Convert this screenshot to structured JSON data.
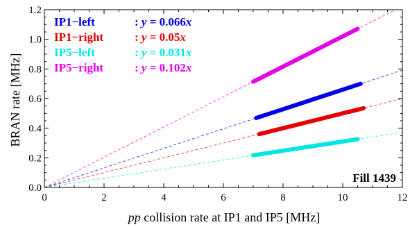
{
  "chart_data": {
    "type": "line",
    "xlabel_italic": "pp",
    "xlabel_rest": " collision rate at IP1 and IP5  [MHz]",
    "ylabel": "BRAN rate  [MHz]",
    "xlim": [
      0,
      12
    ],
    "ylim": [
      0,
      1.2
    ],
    "x_ticks": [
      0,
      2,
      4,
      6,
      8,
      10,
      12
    ],
    "x_tick_labels": [
      "0",
      "2",
      "4",
      "6",
      "8",
      "10",
      "12"
    ],
    "y_ticks": [
      0,
      0.2,
      0.4,
      0.6,
      0.8,
      1.0,
      1.2
    ],
    "y_tick_labels": [
      "0.0",
      "0.2",
      "0.4",
      "0.6",
      "0.8",
      "1.0",
      "1.2"
    ],
    "grid": false,
    "legend_position": "top-left",
    "annotation": "Fill 1439",
    "series": [
      {
        "name": "IP1−left",
        "slope_label": "0.066",
        "color": "#0000e6",
        "slope": 0.066,
        "data_x_range": [
          7.1,
          10.6
        ],
        "x": [
          7.1,
          8.0,
          9.0,
          10.0,
          10.6
        ],
        "y": [
          0.469,
          0.528,
          0.594,
          0.66,
          0.7
        ]
      },
      {
        "name": "IP1−right",
        "slope_label": "0.05",
        "color": "#e60000",
        "slope": 0.05,
        "data_x_range": [
          7.2,
          10.7
        ],
        "x": [
          7.2,
          8.0,
          9.0,
          10.0,
          10.7
        ],
        "y": [
          0.36,
          0.4,
          0.45,
          0.5,
          0.535
        ]
      },
      {
        "name": "IP5−left",
        "slope_label": "0.031",
        "color": "#00e6e6",
        "slope": 0.031,
        "data_x_range": [
          7.0,
          10.5
        ],
        "x": [
          7.0,
          8.0,
          9.0,
          10.0,
          10.5
        ],
        "y": [
          0.217,
          0.248,
          0.279,
          0.31,
          0.326
        ]
      },
      {
        "name": "IP5−right",
        "slope_label": "0.102",
        "color": "#e600e6",
        "slope": 0.102,
        "data_x_range": [
          7.0,
          10.5
        ],
        "x": [
          7.0,
          8.0,
          9.0,
          10.0,
          10.5
        ],
        "y": [
          0.714,
          0.816,
          0.918,
          1.02,
          1.071
        ]
      }
    ]
  }
}
